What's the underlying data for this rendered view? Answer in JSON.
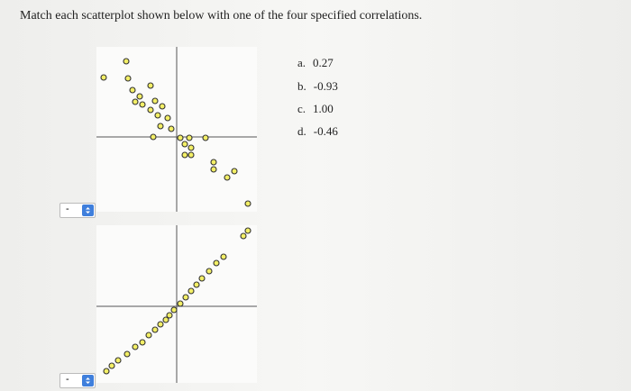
{
  "question": "Match each scatterplot shown below with one of the four specified correlations.",
  "options": [
    {
      "letter": "a.",
      "value": "0.27"
    },
    {
      "letter": "b.",
      "value": "-0.93"
    },
    {
      "letter": "c.",
      "value": "1.00"
    },
    {
      "letter": "d.",
      "value": "-0.46"
    }
  ],
  "dropdowns": [
    {
      "selected": "-"
    },
    {
      "selected": "-"
    }
  ]
}
